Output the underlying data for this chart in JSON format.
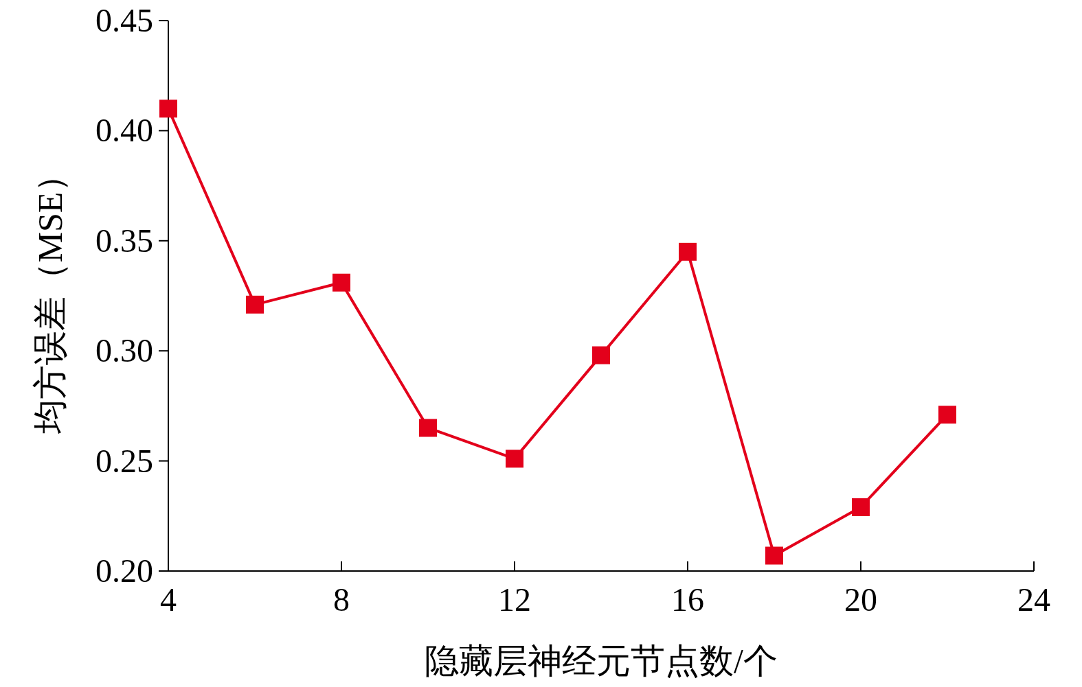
{
  "chart_data": {
    "type": "line",
    "xlabel": "隐藏层神经元节点数/个",
    "ylabel": "均方误差（MSE）",
    "x": [
      4,
      6,
      8,
      10,
      12,
      14,
      16,
      18,
      20,
      22
    ],
    "series": [
      {
        "color": "#e3001b",
        "values": [
          0.41,
          0.321,
          0.331,
          0.265,
          0.251,
          0.298,
          0.345,
          0.207,
          0.229,
          0.271
        ]
      }
    ],
    "xlim": [
      4,
      24
    ],
    "xticks": [
      4,
      8,
      12,
      16,
      20,
      24
    ],
    "ylim": [
      0.2,
      0.45
    ],
    "yticks": [
      {
        "value": 0.2,
        "label": "0.20"
      },
      {
        "value": 0.25,
        "label": "0.25"
      },
      {
        "value": 0.3,
        "label": "0.30"
      },
      {
        "value": 0.35,
        "label": "0.35"
      },
      {
        "value": 0.4,
        "label": "0.40"
      },
      {
        "value": 0.45,
        "label": "0.45"
      }
    ],
    "marker": "square",
    "line_style": "solid",
    "grid": false
  }
}
